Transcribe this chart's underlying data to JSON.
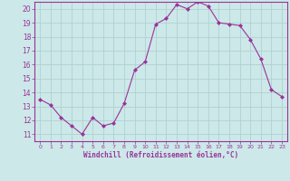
{
  "x": [
    0,
    1,
    2,
    3,
    4,
    5,
    6,
    7,
    8,
    9,
    10,
    11,
    12,
    13,
    14,
    15,
    16,
    17,
    18,
    19,
    20,
    21,
    22,
    23
  ],
  "y": [
    13.5,
    13.1,
    12.2,
    11.6,
    11.0,
    12.2,
    11.6,
    11.8,
    13.2,
    15.6,
    16.2,
    18.9,
    19.3,
    20.3,
    20.0,
    20.5,
    20.2,
    19.0,
    18.9,
    18.8,
    17.8,
    16.4,
    14.2,
    13.7
  ],
  "line_color": "#993399",
  "marker_color": "#993399",
  "bg_color": "#cce8e8",
  "grid_color": "#aacece",
  "xlabel": "Windchill (Refroidissement éolien,°C)",
  "xlabel_color": "#993399",
  "tick_color": "#993399",
  "spine_color": "#993399",
  "ylim": [
    10.5,
    20.5
  ],
  "xlim": [
    -0.5,
    23.5
  ],
  "yticks": [
    11,
    12,
    13,
    14,
    15,
    16,
    17,
    18,
    19,
    20
  ],
  "xticks": [
    0,
    1,
    2,
    3,
    4,
    5,
    6,
    7,
    8,
    9,
    10,
    11,
    12,
    13,
    14,
    15,
    16,
    17,
    18,
    19,
    20,
    21,
    22,
    23
  ],
  "figsize": [
    3.2,
    2.0
  ],
  "dpi": 100
}
